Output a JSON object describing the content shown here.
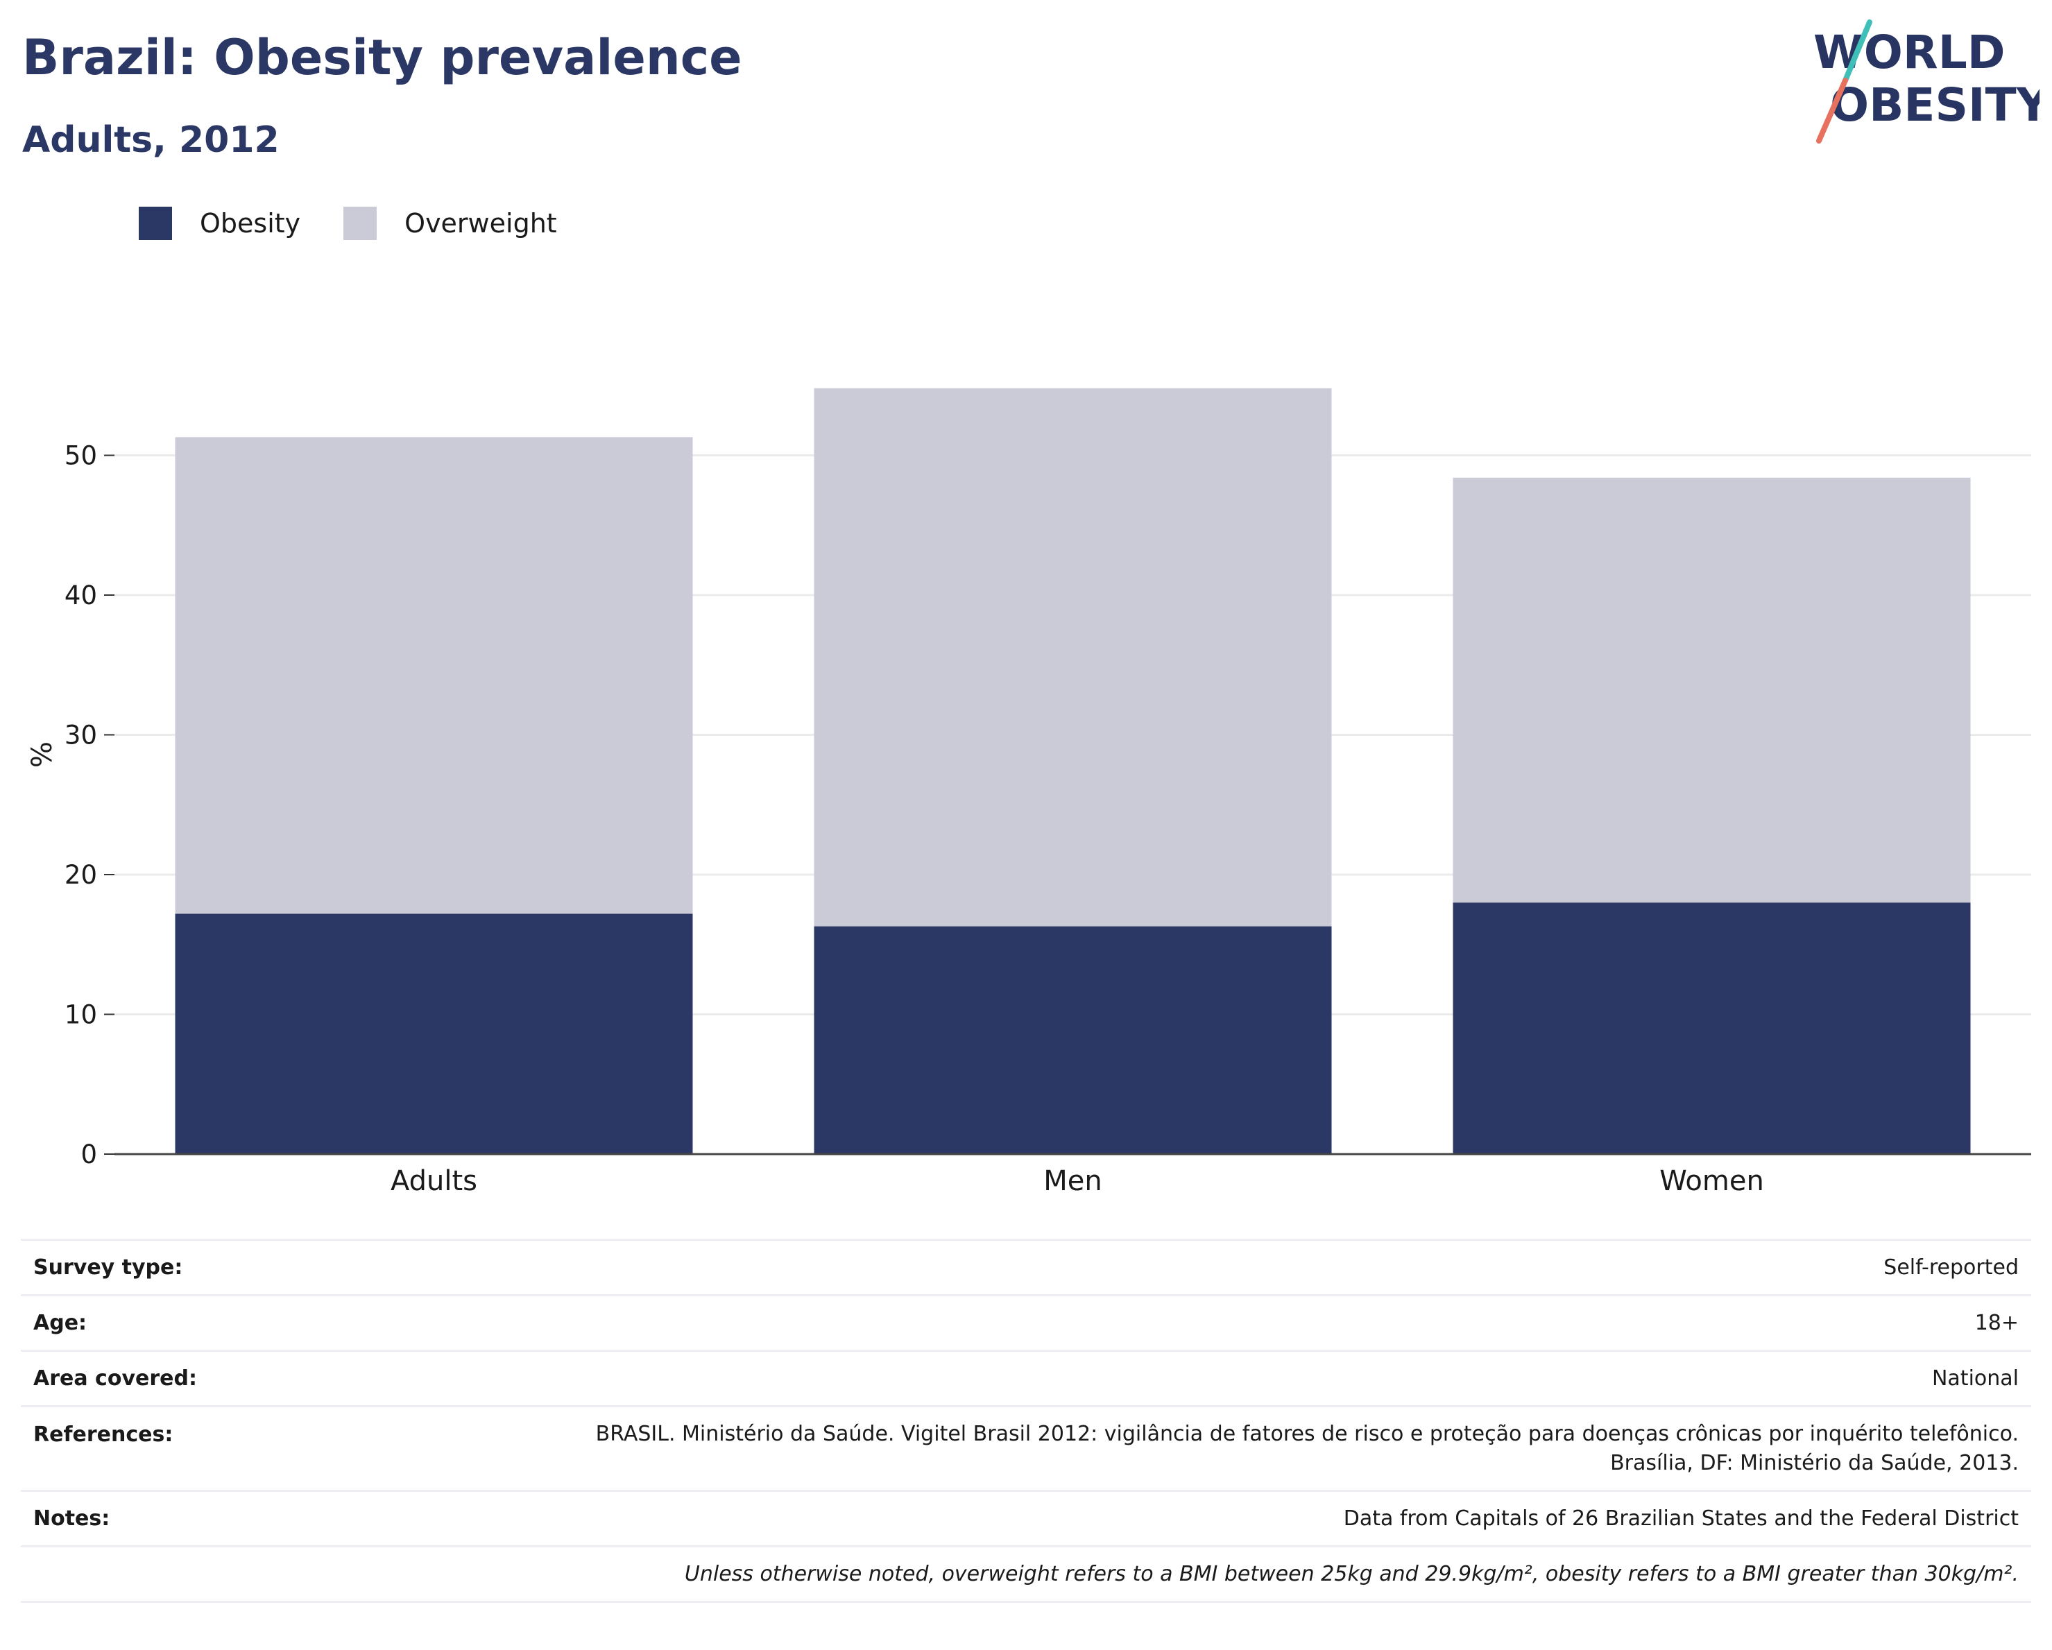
{
  "title": "Brazil: Obesity prevalence",
  "subtitle": "Adults, 2012",
  "logo": {
    "line1": "WORLD",
    "line2": "OBESITY"
  },
  "colors": {
    "obesity": "#2b3764",
    "overweight": "#cacbd7",
    "accent_teal": "#3fbfb8",
    "accent_coral": "#e8705f"
  },
  "legend": [
    {
      "label": "Obesity",
      "color": "#2b3764"
    },
    {
      "label": "Overweight",
      "color": "#cacbd7"
    }
  ],
  "chart_data": {
    "type": "bar",
    "stacked": true,
    "categories": [
      "Adults",
      "Men",
      "Women"
    ],
    "series": [
      {
        "name": "Obesity",
        "values": [
          17.2,
          16.3,
          18.0
        ]
      },
      {
        "name": "Overweight",
        "values": [
          34.1,
          38.5,
          30.4
        ]
      }
    ],
    "ylabel": "%",
    "ylim": [
      0,
      55
    ],
    "yticks": [
      0,
      10,
      20,
      30,
      40,
      50
    ],
    "grid": true,
    "legend_position": "top-left"
  },
  "info": {
    "survey_type": {
      "label": "Survey type:",
      "value": "Self-reported"
    },
    "age": {
      "label": "Age:",
      "value": "18+"
    },
    "area": {
      "label": "Area covered:",
      "value": "National"
    },
    "references": {
      "label": "References:",
      "line1": "BRASIL. Ministério da Saúde. Vigitel Brasil 2012: vigilância de fatores de risco e proteção para doenças crônicas por inquérito telefônico.",
      "line2": "Brasília, DF: Ministério da Saúde, 2013."
    },
    "notes": {
      "label": "Notes:",
      "value": "Data from Capitals of 26 Brazilian States and the Federal District"
    },
    "footnote": "Unless otherwise noted, overweight refers to a BMI between 25kg and 29.9kg/m², obesity refers to a BMI greater than 30kg/m²."
  }
}
